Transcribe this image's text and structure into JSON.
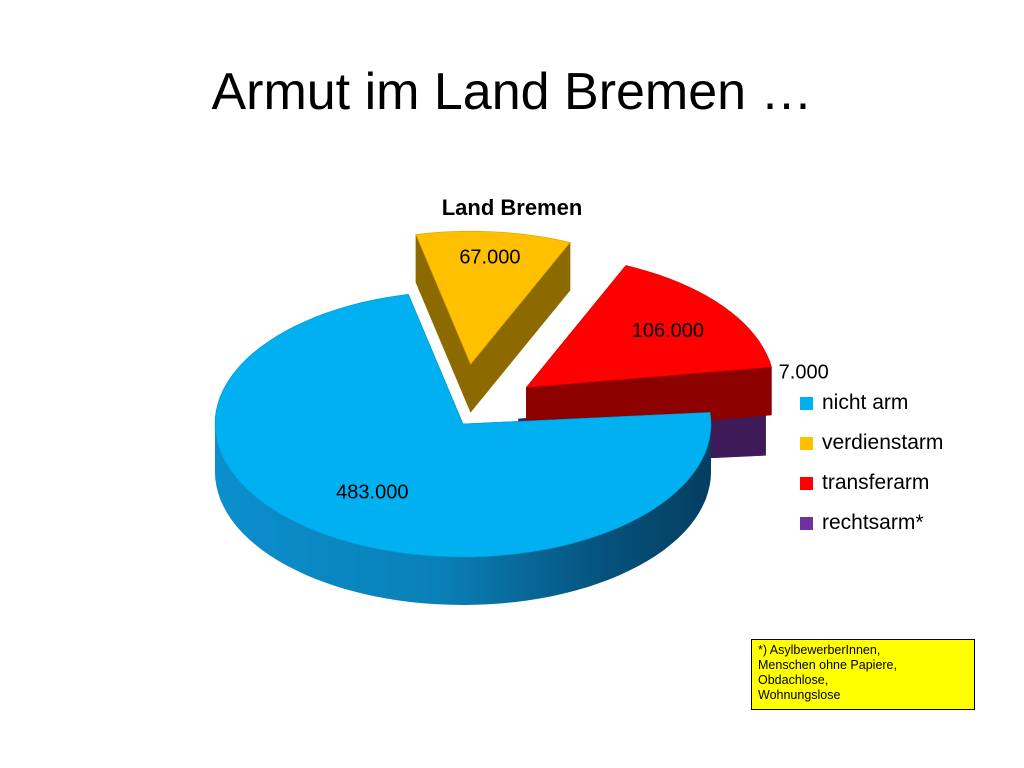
{
  "slide": {
    "title": "Armut im Land Bremen …"
  },
  "chart_data": {
    "type": "pie",
    "title": "Land Bremen",
    "categories": [
      "nicht arm",
      "verdienstarm",
      "transferarm",
      "rechtsarm*"
    ],
    "values": [
      483000,
      67000,
      106000,
      7000
    ],
    "value_labels": [
      "483.000",
      "67.000",
      "106.000",
      "7.000"
    ],
    "colors": [
      "#00b0f0",
      "#ffc000",
      "#ff0000",
      "#7030a0"
    ],
    "legend_position": "right",
    "style": "3d-exploded"
  },
  "footnote": {
    "lines": [
      "*) AsylbewerberInnen,",
      "Menschen ohne Papiere,",
      "Obdachlose,",
      "Wohnungslose"
    ],
    "background": "#ffff00"
  }
}
